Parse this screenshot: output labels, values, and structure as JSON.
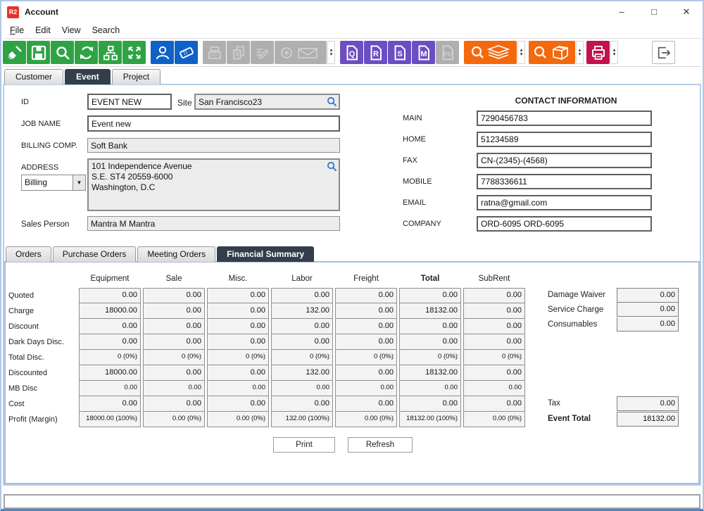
{
  "window": {
    "title": "Account",
    "logo_text": "R2",
    "controls": {
      "minimize": "–",
      "maximize": "□",
      "close": "✕"
    }
  },
  "menu": {
    "items": [
      {
        "label": "File",
        "alt_underline": true
      },
      {
        "label": "Edit",
        "alt_underline": false
      },
      {
        "label": "View",
        "alt_underline": false
      },
      {
        "label": "Search",
        "alt_underline": false
      }
    ]
  },
  "toolbar": {
    "doc_buttons": [
      {
        "letter": "Q"
      },
      {
        "letter": "R"
      },
      {
        "letter": "S"
      },
      {
        "letter": "M"
      },
      {
        "letter": "PO"
      }
    ]
  },
  "main_tabs": {
    "items": [
      "Customer",
      "Event",
      "Project"
    ],
    "selected": "Event"
  },
  "form": {
    "id": {
      "label": "ID",
      "value": "EVENT NEW"
    },
    "site": {
      "label": "Site",
      "value": "San Francisco23"
    },
    "job_name": {
      "label": "JOB NAME",
      "value": "Event new"
    },
    "billing_comp": {
      "label": "BILLING COMP.",
      "value": "Soft Bank"
    },
    "address": {
      "label": "ADDRESS",
      "type_value": "Billing",
      "text": "101 Independence Avenue\nS.E. ST4 20559-6000\nWashington, D.C"
    },
    "sales_person": {
      "label": "Sales Person",
      "value": "Mantra M Mantra"
    }
  },
  "contact": {
    "header": "CONTACT INFORMATION",
    "fields": [
      {
        "label": "MAIN",
        "value": "7290456783"
      },
      {
        "label": "HOME",
        "value": "51234589"
      },
      {
        "label": "FAX",
        "value": "CN-(2345)-(4568)"
      },
      {
        "label": "MOBILE",
        "value": "7788336611"
      },
      {
        "label": "EMAIL",
        "value": "ratna@gmail.com"
      },
      {
        "label": "COMPANY",
        "value": "ORD-6095 ORD-6095"
      }
    ]
  },
  "sub_tabs": {
    "items": [
      "Orders",
      "Purchase Orders",
      "Meeting Orders",
      "Financial Summary"
    ],
    "selected": "Financial Summary"
  },
  "financial": {
    "columns": [
      "Equipment",
      "Sale",
      "Misc.",
      "Labor",
      "Freight",
      "Total",
      "SubRent"
    ],
    "bold_columns": [
      "Total"
    ],
    "rows": [
      {
        "label": "Quoted",
        "small": false,
        "values": [
          "0.00",
          "0.00",
          "0.00",
          "0.00",
          "0.00",
          "0.00",
          "0.00"
        ]
      },
      {
        "label": "Charge",
        "small": false,
        "values": [
          "18000.00",
          "0.00",
          "0.00",
          "132.00",
          "0.00",
          "18132.00",
          "0.00"
        ]
      },
      {
        "label": "Discount",
        "small": false,
        "values": [
          "0.00",
          "0.00",
          "0.00",
          "0.00",
          "0.00",
          "0.00",
          "0.00"
        ]
      },
      {
        "label": "Dark Days Disc.",
        "small": false,
        "values": [
          "0.00",
          "0.00",
          "0.00",
          "0.00",
          "0.00",
          "0.00",
          "0.00"
        ]
      },
      {
        "label": "Total Disc.",
        "small": true,
        "values": [
          "0 (0%)",
          "0 (0%)",
          "0 (0%)",
          "0 (0%)",
          "0 (0%)",
          "0 (0%)",
          "0 (0%)"
        ]
      },
      {
        "label": "Discounted",
        "small": false,
        "values": [
          "18000.00",
          "0.00",
          "0.00",
          "132.00",
          "0.00",
          "18132.00",
          "0.00"
        ]
      },
      {
        "label": "MB Disc",
        "small": true,
        "values": [
          "0.00",
          "0.00",
          "0.00",
          "0.00",
          "0.00",
          "0.00",
          "0.00"
        ]
      },
      {
        "label": "Cost",
        "small": false,
        "values": [
          "0.00",
          "0.00",
          "0.00",
          "0.00",
          "0.00",
          "0.00",
          "0.00"
        ]
      },
      {
        "label": "Profit (Margin)",
        "small": true,
        "values": [
          "18000.00 (100%)",
          "0.00 (0%)",
          "0.00 (0%)",
          "132.00 (100%)",
          "0.00 (0%)",
          "18132.00 (100%)",
          "0.00 (0%)"
        ]
      }
    ],
    "side_top": [
      {
        "label": "Damage Waiver",
        "value": "0.00"
      },
      {
        "label": "Service Charge",
        "value": "0.00"
      },
      {
        "label": "Consumables",
        "value": "0.00"
      }
    ],
    "side_bottom": [
      {
        "label": "Tax",
        "value": "0.00",
        "bold": false
      },
      {
        "label": "Event Total",
        "value": "18132.00",
        "bold": true
      }
    ],
    "buttons": {
      "print": "Print",
      "refresh": "Refresh"
    }
  },
  "colors": {
    "green": "#2FA344",
    "blue": "#0F62C5",
    "purple": "#6A4EC2",
    "orange": "#F4680E",
    "crimson": "#C1134E",
    "selected_tab": "#333E4A",
    "panel_border": "#B6CDE9",
    "logo_red": "#E3342B"
  }
}
